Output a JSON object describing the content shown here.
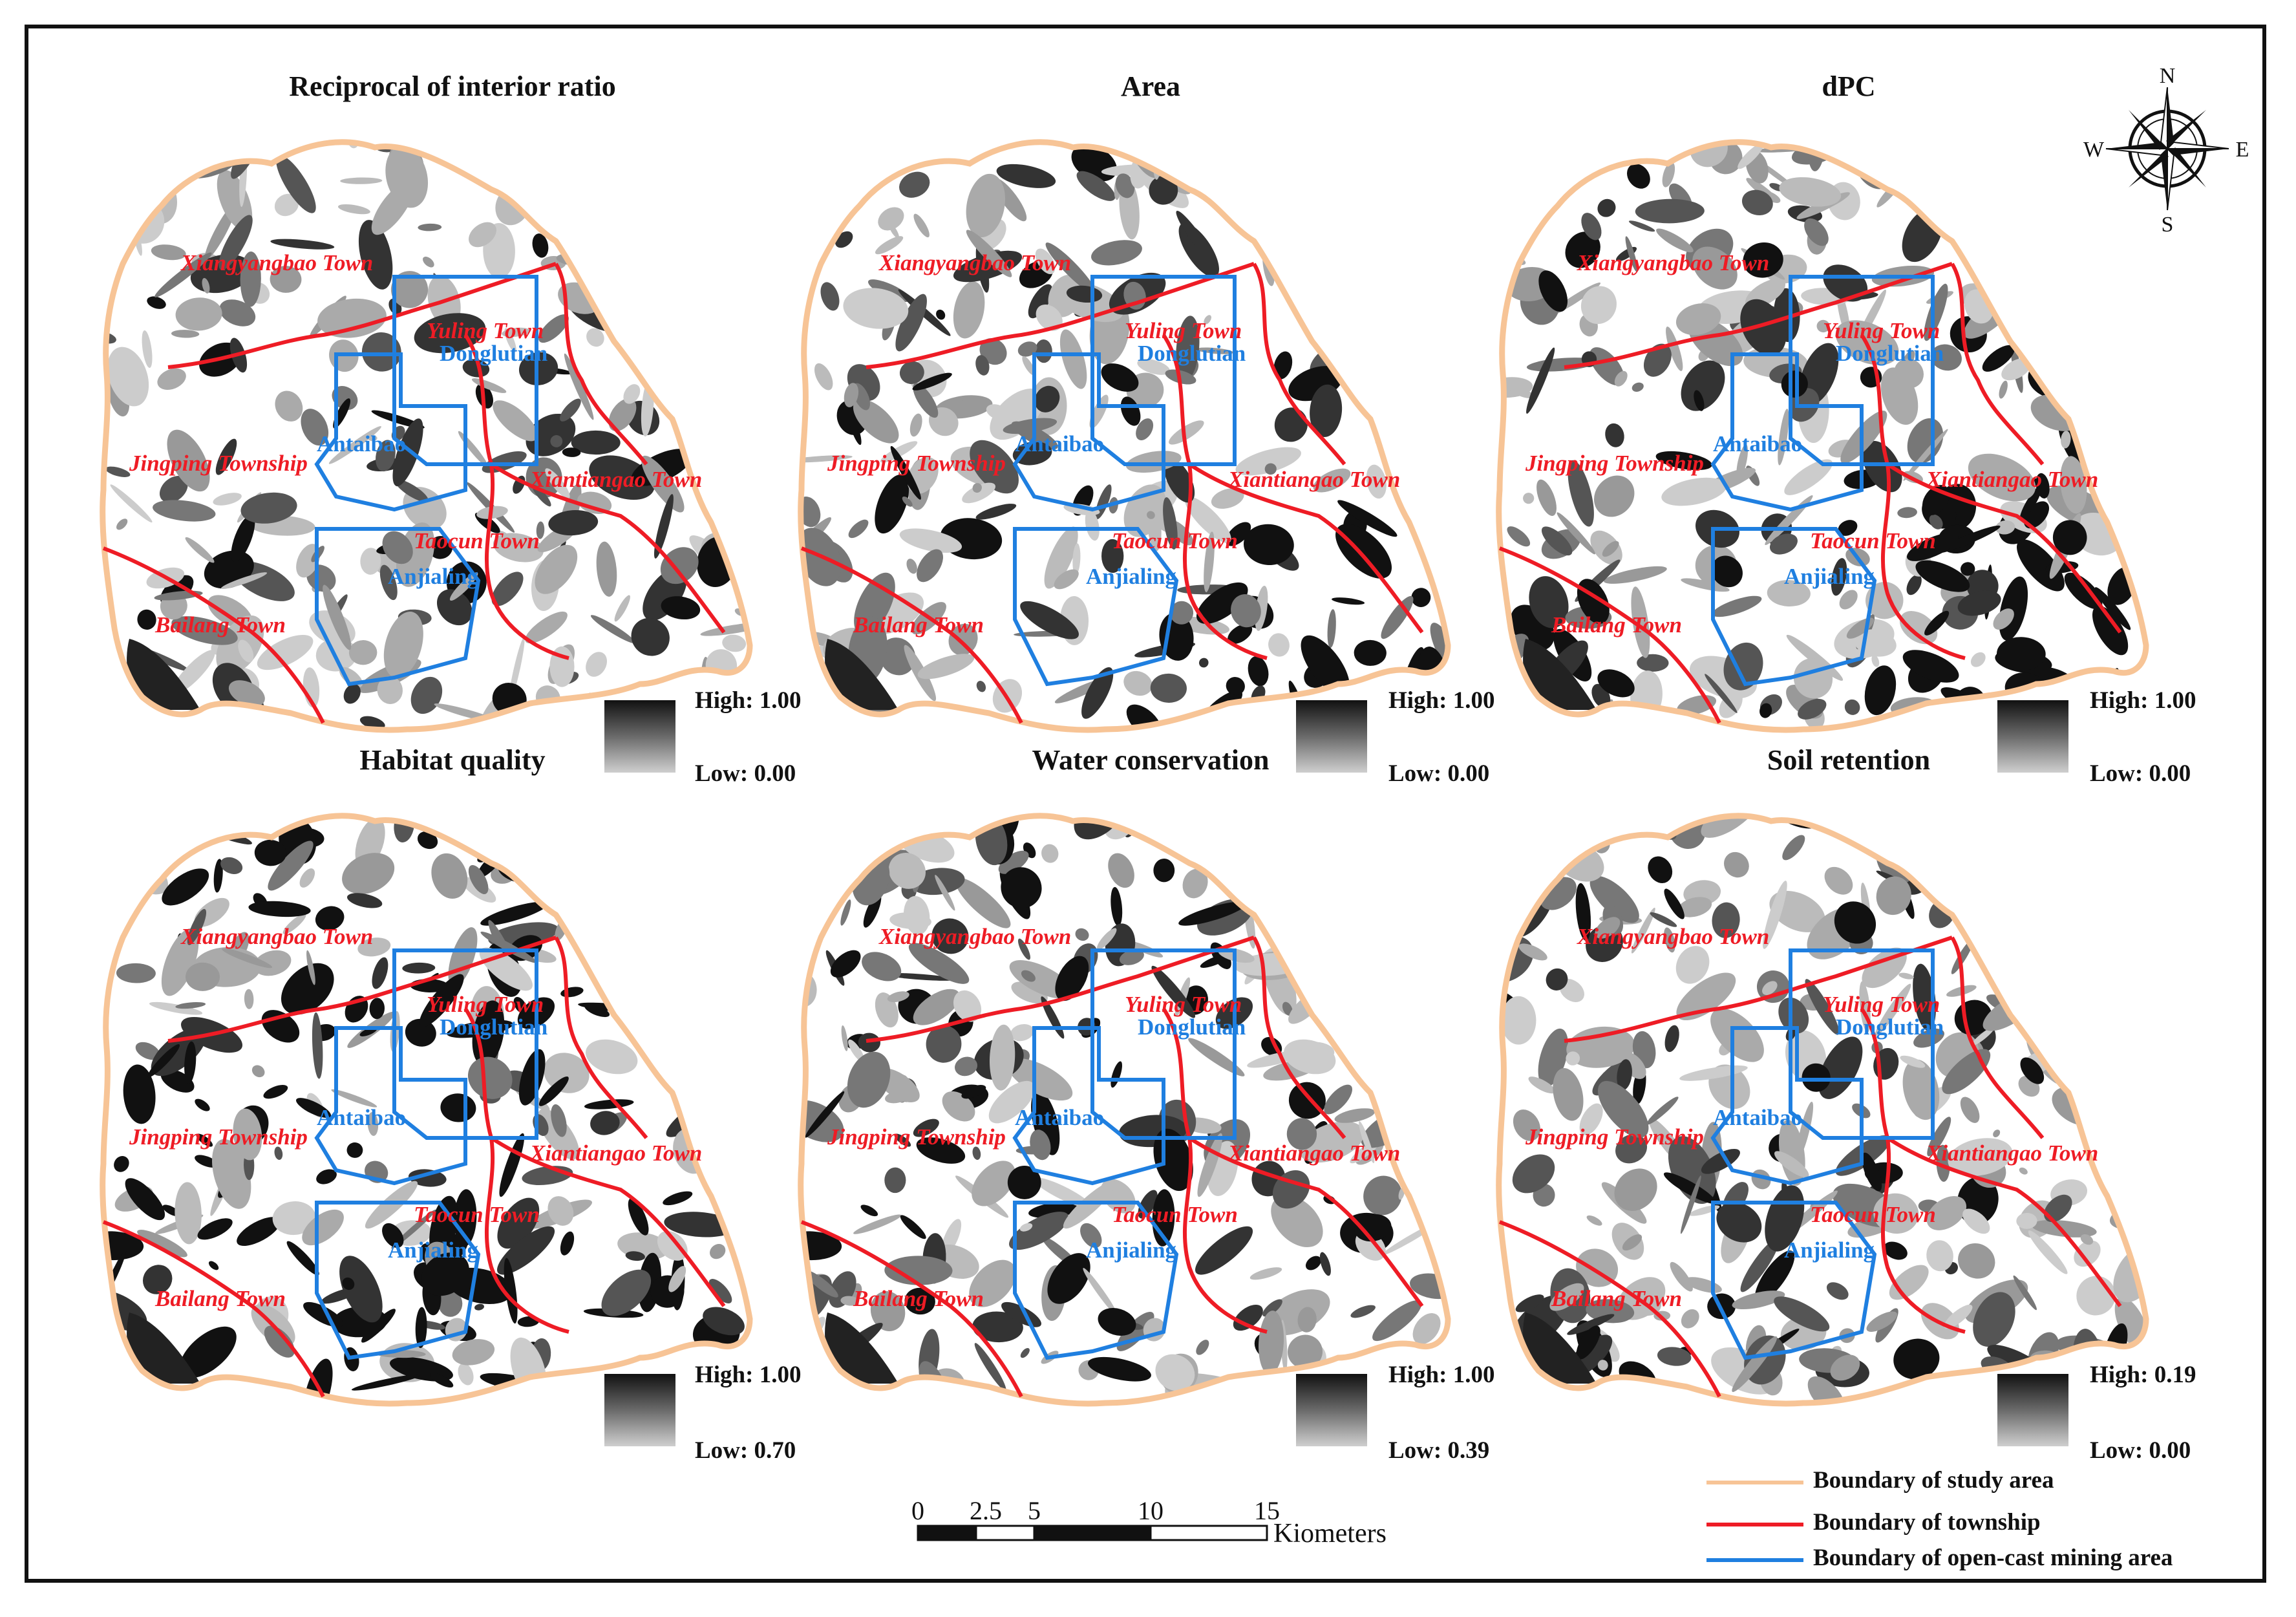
{
  "panels": [
    {
      "title": "Reciprocal of interior ratio",
      "high": "High: 1.00",
      "low": "Low: 0.00",
      "variant": 0
    },
    {
      "title": "Area",
      "high": "High: 1.00",
      "low": "Low: 0.00",
      "variant": 1
    },
    {
      "title": "dPC",
      "high": "High: 1.00",
      "low": "Low: 0.00",
      "variant": 2
    },
    {
      "title": "Habitat quality",
      "high": "High: 1.00",
      "low": "Low: 0.70",
      "variant": 3
    },
    {
      "title": "Water conservation",
      "high": "High: 1.00",
      "low": "Low: 0.39",
      "variant": 4
    },
    {
      "title": "Soil retention",
      "high": "High: 0.19",
      "low": "Low: 0.00",
      "variant": 5
    }
  ],
  "towns": [
    "Xiangyangbao Town",
    "Yuling Town",
    "Jingping Township",
    "Xiantiangao Town",
    "Taocun Town",
    "Bailang Town"
  ],
  "mining_areas": [
    "Donglutian",
    "Antaibao",
    "Anjialing"
  ],
  "compass": {
    "n": "N",
    "s": "S",
    "e": "E",
    "w": "W"
  },
  "scale": {
    "ticks": [
      "0",
      "2.5",
      "5",
      "10",
      "15"
    ],
    "unit": "Kiometers"
  },
  "legend": [
    {
      "label": "Boundary of study area",
      "color": "#f7c496"
    },
    {
      "label": "Boundary of township",
      "color": "#ee1c25"
    },
    {
      "label": "Boundary of open-cast mining area",
      "color": "#1f7fe0"
    }
  ],
  "colors": {
    "study_area": "#f7c496",
    "township": "#ee1c25",
    "mining": "#1f7fe0"
  }
}
